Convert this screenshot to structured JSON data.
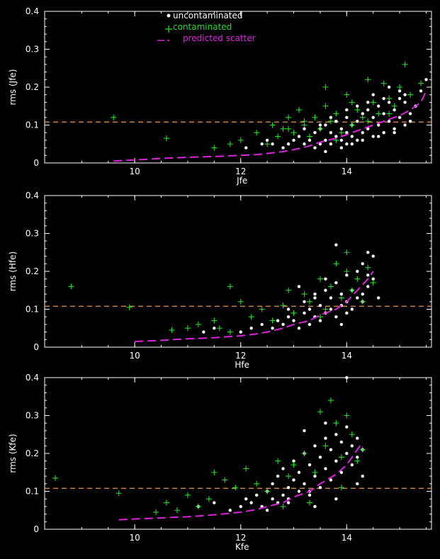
{
  "colors": {
    "background": "#000000",
    "axes": "#ffffff",
    "uncontaminated": "#ffffff",
    "contaminated": "#22dd22",
    "predicted": "#dd22dd",
    "threshold": "#e8964a"
  },
  "legend": {
    "uncontaminated": "uncontaminated",
    "contaminated": "contaminated",
    "predicted": "predicted scatter"
  },
  "chart_data": [
    {
      "type": "scatter",
      "xlabel": "Jfe",
      "ylabel": "rms (Jfe)",
      "xlim": [
        8.3,
        15.6
      ],
      "ylim": [
        0,
        0.4
      ],
      "xticks": [
        "10",
        "12",
        "14"
      ],
      "yticks": [
        "0",
        "0.1",
        "0.2",
        "0.3",
        "0.4"
      ],
      "threshold": 0.108,
      "series": [
        {
          "name": "uncontaminated",
          "marker": "dot",
          "x": [
            12.1,
            12.4,
            12.5,
            12.6,
            12.8,
            12.9,
            13.0,
            13.1,
            13.2,
            13.3,
            13.4,
            13.4,
            13.5,
            13.5,
            13.6,
            13.6,
            13.7,
            13.7,
            13.8,
            13.8,
            13.9,
            13.9,
            14.0,
            14.0,
            14.0,
            14.1,
            14.1,
            14.2,
            14.2,
            14.3,
            14.3,
            14.4,
            14.4,
            14.5,
            14.5,
            14.6,
            14.6,
            14.7,
            14.7,
            14.8,
            14.8,
            14.9,
            14.9,
            15.0,
            15.0,
            15.1,
            15.1,
            15.2,
            15.3,
            15.4,
            15.5,
            13.6,
            13.9,
            14.1,
            14.3,
            14.6,
            14.9,
            15.2,
            13.7,
            14.0,
            14.2,
            14.4,
            14.7,
            15.0,
            13.2,
            13.5,
            13.8,
            14.5,
            14.8,
            15.1
          ],
          "y": [
            0.04,
            0.05,
            0.06,
            0.05,
            0.04,
            0.05,
            0.06,
            0.07,
            0.05,
            0.06,
            0.04,
            0.08,
            0.05,
            0.09,
            0.06,
            0.1,
            0.05,
            0.08,
            0.07,
            0.11,
            0.06,
            0.09,
            0.05,
            0.08,
            0.12,
            0.07,
            0.1,
            0.06,
            0.11,
            0.08,
            0.13,
            0.09,
            0.14,
            0.07,
            0.12,
            0.1,
            0.15,
            0.08,
            0.13,
            0.11,
            0.16,
            0.09,
            0.14,
            0.12,
            0.17,
            0.1,
            0.18,
            0.13,
            0.15,
            0.19,
            0.22,
            0.03,
            0.04,
            0.05,
            0.06,
            0.07,
            0.08,
            0.11,
            0.12,
            0.14,
            0.15,
            0.16,
            0.17,
            0.19,
            0.09,
            0.1,
            0.11,
            0.18,
            0.2,
            0.16
          ]
        },
        {
          "name": "contaminated",
          "marker": "plus",
          "x": [
            9.6,
            10.6,
            11.5,
            11.8,
            12.0,
            12.3,
            12.5,
            12.6,
            12.7,
            12.8,
            12.9,
            13.0,
            13.1,
            13.2,
            13.3,
            13.4,
            13.5,
            13.6,
            13.6,
            13.7,
            13.8,
            13.9,
            14.0,
            14.1,
            14.2,
            14.3,
            14.4,
            14.5,
            14.6,
            14.7,
            14.8,
            14.9,
            15.0,
            15.1,
            15.2,
            15.4,
            14.4,
            14.8,
            13.8,
            12.9,
            13.2,
            14.1
          ],
          "y": [
            0.12,
            0.065,
            0.04,
            0.05,
            0.06,
            0.08,
            0.05,
            0.1,
            0.07,
            0.09,
            0.12,
            0.08,
            0.14,
            0.1,
            0.07,
            0.12,
            0.09,
            0.2,
            0.15,
            0.11,
            0.13,
            0.08,
            0.18,
            0.1,
            0.14,
            0.12,
            0.22,
            0.16,
            0.13,
            0.21,
            0.17,
            0.15,
            0.2,
            0.26,
            0.18,
            0.21,
            0.11,
            0.13,
            0.06,
            0.09,
            0.11,
            0.16
          ]
        },
        {
          "name": "predicted scatter",
          "marker": "dashed-line",
          "x": [
            9.6,
            10.0,
            10.5,
            11.0,
            11.5,
            12.0,
            12.3,
            12.5,
            12.8,
            13.0,
            13.3,
            13.5,
            13.8,
            14.0,
            14.3,
            14.5,
            14.8,
            15.0,
            15.2,
            15.4,
            15.5
          ],
          "y": [
            0.005,
            0.008,
            0.012,
            0.015,
            0.017,
            0.02,
            0.022,
            0.025,
            0.03,
            0.035,
            0.045,
            0.055,
            0.065,
            0.075,
            0.09,
            0.1,
            0.115,
            0.125,
            0.14,
            0.16,
            0.19
          ]
        }
      ]
    },
    {
      "type": "scatter",
      "xlabel": "Hfe",
      "ylabel": "rms (Hfe)",
      "xlim": [
        8.3,
        15.6
      ],
      "ylim": [
        0,
        0.4
      ],
      "xticks": [
        "10",
        "12",
        "14"
      ],
      "yticks": [
        "0",
        "0.1",
        "0.2",
        "0.3",
        "0.4"
      ],
      "threshold": 0.108,
      "series": [
        {
          "name": "uncontaminated",
          "marker": "dot",
          "x": [
            11.3,
            11.5,
            12.0,
            12.2,
            12.4,
            12.6,
            12.7,
            12.8,
            12.9,
            13.0,
            13.1,
            13.2,
            13.2,
            13.3,
            13.3,
            13.4,
            13.4,
            13.5,
            13.5,
            13.6,
            13.6,
            13.7,
            13.7,
            13.8,
            13.8,
            13.9,
            13.9,
            14.0,
            14.0,
            14.1,
            14.1,
            14.2,
            14.2,
            14.3,
            14.3,
            14.4,
            14.4,
            14.5,
            14.5,
            14.6,
            13.8,
            14.4,
            13.1,
            13.6,
            14.0,
            14.3,
            12.9,
            13.4,
            13.9
          ],
          "y": [
            0.04,
            0.05,
            0.04,
            0.05,
            0.06,
            0.05,
            0.07,
            0.06,
            0.08,
            0.07,
            0.05,
            0.09,
            0.12,
            0.06,
            0.1,
            0.08,
            0.14,
            0.07,
            0.11,
            0.09,
            0.15,
            0.1,
            0.13,
            0.08,
            0.17,
            0.11,
            0.14,
            0.12,
            0.19,
            0.1,
            0.15,
            0.13,
            0.2,
            0.14,
            0.22,
            0.16,
            0.25,
            0.18,
            0.24,
            0.13,
            0.27,
            0.19,
            0.16,
            0.18,
            0.09,
            0.12,
            0.1,
            0.13,
            0.06
          ]
        },
        {
          "name": "contaminated",
          "marker": "plus",
          "x": [
            8.8,
            9.9,
            10.7,
            11.0,
            11.2,
            11.5,
            11.6,
            11.8,
            12.0,
            12.2,
            12.4,
            12.6,
            12.8,
            12.9,
            13.0,
            13.2,
            13.3,
            13.5,
            13.6,
            13.7,
            13.8,
            13.9,
            14.0,
            14.0,
            14.1,
            14.2,
            14.3,
            14.4,
            14.5,
            11.8,
            13.5
          ],
          "y": [
            0.16,
            0.105,
            0.045,
            0.05,
            0.06,
            0.07,
            0.05,
            0.16,
            0.12,
            0.08,
            0.1,
            0.07,
            0.11,
            0.15,
            0.09,
            0.14,
            0.12,
            0.18,
            0.1,
            0.16,
            0.22,
            0.13,
            0.25,
            0.2,
            0.15,
            0.18,
            0.12,
            0.21,
            0.17,
            0.04,
            0.08
          ]
        },
        {
          "name": "predicted scatter",
          "marker": "dashed-line",
          "x": [
            10.0,
            10.5,
            11.0,
            11.5,
            12.0,
            12.3,
            12.5,
            12.8,
            13.0,
            13.3,
            13.5,
            13.8,
            14.0,
            14.2,
            14.4,
            14.5
          ],
          "y": [
            0.015,
            0.018,
            0.022,
            0.025,
            0.03,
            0.035,
            0.04,
            0.05,
            0.06,
            0.07,
            0.085,
            0.1,
            0.12,
            0.15,
            0.18,
            0.2
          ]
        }
      ]
    },
    {
      "type": "scatter",
      "xlabel": "Kfe",
      "ylabel": "rms (Kfe)",
      "xlim": [
        8.3,
        15.6
      ],
      "ylim": [
        0,
        0.4
      ],
      "xticks": [
        "10",
        "12",
        "14"
      ],
      "yticks": [
        "0",
        "0.1",
        "0.2",
        "0.3",
        "0.4"
      ],
      "threshold": 0.108,
      "series": [
        {
          "name": "uncontaminated",
          "marker": "dot",
          "x": [
            11.2,
            11.5,
            11.8,
            12.0,
            12.1,
            12.2,
            12.3,
            12.4,
            12.5,
            12.6,
            12.6,
            12.7,
            12.7,
            12.8,
            12.8,
            12.9,
            12.9,
            13.0,
            13.0,
            13.1,
            13.1,
            13.2,
            13.2,
            13.3,
            13.3,
            13.4,
            13.4,
            13.5,
            13.5,
            13.6,
            13.6,
            13.7,
            13.7,
            13.8,
            13.8,
            13.9,
            13.9,
            14.0,
            14.0,
            14.1,
            14.1,
            14.2,
            14.2,
            14.3,
            14.3,
            13.2,
            13.6,
            14.0,
            13.4,
            13.8,
            14.2,
            12.5,
            12.9,
            13.3
          ],
          "y": [
            0.06,
            0.07,
            0.05,
            0.06,
            0.08,
            0.07,
            0.09,
            0.06,
            0.1,
            0.08,
            0.12,
            0.07,
            0.14,
            0.09,
            0.16,
            0.08,
            0.11,
            0.13,
            0.18,
            0.1,
            0.15,
            0.12,
            0.2,
            0.09,
            0.17,
            0.14,
            0.22,
            0.11,
            0.19,
            0.16,
            0.24,
            0.13,
            0.21,
            0.18,
            0.25,
            0.15,
            0.23,
            0.2,
            0.27,
            0.17,
            0.22,
            0.24,
            0.19,
            0.21,
            0.14,
            0.26,
            0.28,
            0.4,
            0.06,
            0.08,
            0.12,
            0.05,
            0.07,
            0.1
          ]
        },
        {
          "name": "contaminated",
          "marker": "plus",
          "x": [
            8.5,
            9.7,
            10.4,
            10.6,
            10.8,
            11.0,
            11.2,
            11.4,
            11.5,
            11.7,
            11.9,
            12.1,
            12.3,
            12.5,
            12.7,
            12.9,
            13.0,
            13.2,
            13.4,
            13.5,
            13.6,
            13.7,
            13.8,
            13.9,
            14.0,
            14.1,
            14.2,
            14.3,
            12.8,
            13.3,
            13.9
          ],
          "y": [
            0.135,
            0.095,
            0.045,
            0.07,
            0.05,
            0.09,
            0.06,
            0.08,
            0.15,
            0.13,
            0.11,
            0.16,
            0.12,
            0.1,
            0.18,
            0.14,
            0.17,
            0.2,
            0.15,
            0.31,
            0.22,
            0.34,
            0.28,
            0.19,
            0.3,
            0.25,
            0.18,
            0.21,
            0.06,
            0.07,
            0.11
          ]
        },
        {
          "name": "predicted scatter",
          "marker": "dashed-line",
          "x": [
            9.7,
            10.0,
            10.5,
            11.0,
            11.5,
            12.0,
            12.3,
            12.5,
            12.8,
            13.0,
            13.3,
            13.5,
            13.8,
            14.0,
            14.2,
            14.3
          ],
          "y": [
            0.025,
            0.027,
            0.03,
            0.033,
            0.038,
            0.045,
            0.052,
            0.06,
            0.07,
            0.085,
            0.1,
            0.12,
            0.145,
            0.17,
            0.21,
            0.23
          ]
        }
      ]
    }
  ]
}
